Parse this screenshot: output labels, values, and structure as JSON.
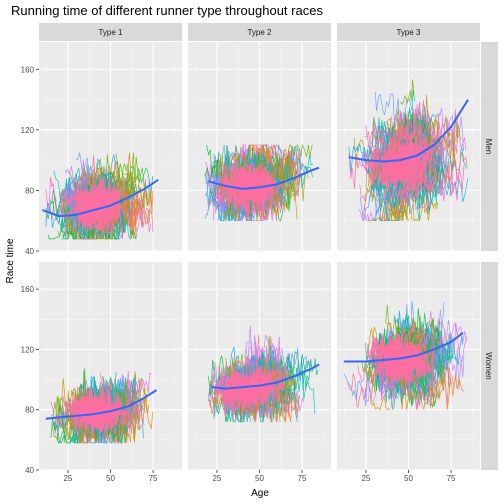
{
  "chart_data": {
    "type": "line",
    "title": "Running time of different runner type throughout races",
    "xlabel": "Age",
    "ylabel": "Race time",
    "xlim": [
      8,
      92
    ],
    "ylim": [
      40,
      178
    ],
    "x_ticks": [
      25,
      50,
      75
    ],
    "x_tick_labels": [
      "25",
      "50",
      "75"
    ],
    "y_ticks": [
      40,
      80,
      120,
      160
    ],
    "y_tick_labels": [
      "40",
      "80",
      "120",
      "160"
    ],
    "grid": true,
    "legend": "none",
    "columns": [
      "Type 1",
      "Type 2",
      "Type 3"
    ],
    "rows": [
      "Men",
      "Women"
    ],
    "panels": [
      {
        "column": "Type 1",
        "row": "Men",
        "cloud": {
          "x_range": [
            12,
            75
          ],
          "center": [
            35,
            70
          ],
          "spread": [
            9,
            9
          ],
          "y_min": 48,
          "y_max": 105
        },
        "smooth": [
          [
            10,
            67
          ],
          [
            20,
            63
          ],
          [
            30,
            64
          ],
          [
            40,
            67
          ],
          [
            50,
            70
          ],
          [
            60,
            75
          ],
          [
            70,
            81
          ],
          [
            78,
            87
          ]
        ]
      },
      {
        "column": "Type 2",
        "row": "Men",
        "cloud": {
          "x_range": [
            18,
            82
          ],
          "center": [
            38,
            83
          ],
          "spread": [
            10,
            9
          ],
          "y_min": 60,
          "y_max": 110
        },
        "smooth": [
          [
            20,
            86
          ],
          [
            30,
            83
          ],
          [
            40,
            81
          ],
          [
            50,
            82
          ],
          [
            60,
            84
          ],
          [
            70,
            88
          ],
          [
            80,
            93
          ],
          [
            85,
            95
          ]
        ]
      },
      {
        "column": "Type 3",
        "row": "Men",
        "cloud": {
          "x_range": [
            15,
            85
          ],
          "center": [
            40,
            100
          ],
          "spread": [
            11,
            14
          ],
          "y_min": 60,
          "y_max": 170
        },
        "smooth": [
          [
            15,
            102
          ],
          [
            25,
            100
          ],
          [
            35,
            99
          ],
          [
            45,
            100
          ],
          [
            55,
            103
          ],
          [
            65,
            110
          ],
          [
            75,
            122
          ],
          [
            85,
            140
          ]
        ]
      },
      {
        "column": "Type 1",
        "row": "Women",
        "cloud": {
          "x_range": [
            15,
            75
          ],
          "center": [
            36,
            79
          ],
          "spread": [
            9,
            7
          ],
          "y_min": 58,
          "y_max": 108
        },
        "smooth": [
          [
            12,
            74
          ],
          [
            20,
            75
          ],
          [
            30,
            76
          ],
          [
            40,
            77
          ],
          [
            50,
            79
          ],
          [
            60,
            82
          ],
          [
            70,
            88
          ],
          [
            77,
            93
          ]
        ]
      },
      {
        "column": "Type 2",
        "row": "Women",
        "cloud": {
          "x_range": [
            20,
            85
          ],
          "center": [
            38,
            95
          ],
          "spread": [
            9,
            8
          ],
          "y_min": 72,
          "y_max": 140
        },
        "smooth": [
          [
            22,
            95
          ],
          [
            30,
            94
          ],
          [
            40,
            95
          ],
          [
            50,
            96
          ],
          [
            60,
            98
          ],
          [
            70,
            102
          ],
          [
            80,
            107
          ],
          [
            85,
            110
          ]
        ]
      },
      {
        "column": "Type 3",
        "row": "Women",
        "cloud": {
          "x_range": [
            12,
            85
          ],
          "center": [
            40,
            113
          ],
          "spread": [
            11,
            10
          ],
          "y_min": 80,
          "y_max": 170
        },
        "smooth": [
          [
            12,
            112
          ],
          [
            25,
            112
          ],
          [
            35,
            113
          ],
          [
            45,
            114
          ],
          [
            55,
            116
          ],
          [
            65,
            120
          ],
          [
            75,
            125
          ],
          [
            82,
            131
          ]
        ]
      }
    ],
    "colors": {
      "panel_bg": "#ebebeb",
      "grid_major": "#ffffff",
      "grid_minor": "#f5f5f5",
      "strip_bg": "#d9d9d9",
      "smooth_line": "#3366ff",
      "line_palette": [
        "#f8766d",
        "#e58700",
        "#c99800",
        "#a3a500",
        "#6bb100",
        "#00ba38",
        "#00bf7d",
        "#00c0af",
        "#00bcd8",
        "#00b0f6",
        "#619cff",
        "#b983ff",
        "#e76bf3",
        "#fd61d1",
        "#ff67a4"
      ],
      "core_color": "#ff6fa0"
    }
  }
}
